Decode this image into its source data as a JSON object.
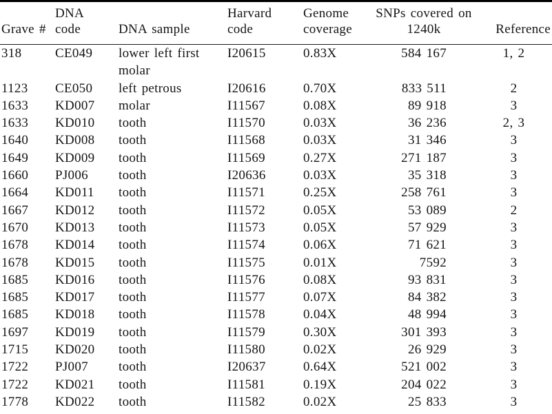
{
  "table": {
    "columns": [
      {
        "key": "grave-number",
        "label": "Grave #"
      },
      {
        "key": "dna-code",
        "label": "DNA\ncode"
      },
      {
        "key": "dna-sample",
        "label": "DNA sample"
      },
      {
        "key": "harvard-code",
        "label": "Harvard\ncode"
      },
      {
        "key": "genome-coverage",
        "label": "Genome\ncoverage"
      },
      {
        "key": "snps-covered",
        "label": "SNPs covered on\n1240k"
      },
      {
        "key": "reference",
        "label": "Reference"
      }
    ],
    "rows": [
      [
        "318",
        "CE049",
        "lower left first\nmolar",
        "I20615",
        "0.83X",
        "584 167",
        "1, 2"
      ],
      [
        "1123",
        "CE050",
        "left petrous",
        "I20616",
        "0.70X",
        "833 511",
        "2"
      ],
      [
        "1633",
        "KD007",
        "molar",
        "I11567",
        "0.08X",
        "89 918",
        "3"
      ],
      [
        "1633",
        "KD010",
        "tooth",
        "I11570",
        "0.03X",
        "36 236",
        "2, 3"
      ],
      [
        "1640",
        "KD008",
        "tooth",
        "I11568",
        "0.03X",
        "31 346",
        "3"
      ],
      [
        "1649",
        "KD009",
        "tooth",
        "I11569",
        "0.27X",
        "271 187",
        "3"
      ],
      [
        "1660",
        "PJ006",
        "tooth",
        "I20636",
        "0.03X",
        "35 318",
        "3"
      ],
      [
        "1664",
        "KD011",
        "tooth",
        "I11571",
        "0.25X",
        "258 761",
        "3"
      ],
      [
        "1667",
        "KD012",
        "tooth",
        "I11572",
        "0.05X",
        "53 089",
        "2"
      ],
      [
        "1670",
        "KD013",
        "tooth",
        "I11573",
        "0.05X",
        "57 929",
        "3"
      ],
      [
        "1678",
        "KD014",
        "tooth",
        "I11574",
        "0.06X",
        "71 621",
        "3"
      ],
      [
        "1678",
        "KD015",
        "tooth",
        "I11575",
        "0.01X",
        "7592",
        "3"
      ],
      [
        "1685",
        "KD016",
        "tooth",
        "I11576",
        "0.08X",
        "93 831",
        "3"
      ],
      [
        "1685",
        "KD017",
        "tooth",
        "I11577",
        "0.07X",
        "84 382",
        "3"
      ],
      [
        "1685",
        "KD018",
        "tooth",
        "I11578",
        "0.04X",
        "48 994",
        "3"
      ],
      [
        "1697",
        "KD019",
        "tooth",
        "I11579",
        "0.30X",
        "301 393",
        "3"
      ],
      [
        "1715",
        "KD020",
        "tooth",
        "I11580",
        "0.02X",
        "26 929",
        "3"
      ],
      [
        "1722",
        "PJ007",
        "tooth",
        "I20637",
        "0.64X",
        "521 002",
        "3"
      ],
      [
        "1722",
        "KD021",
        "tooth",
        "I11581",
        "0.19X",
        "204 022",
        "3"
      ],
      [
        "1778",
        "KD022",
        "tooth",
        "I11582",
        "0.02X",
        "25 833",
        "3"
      ]
    ]
  }
}
